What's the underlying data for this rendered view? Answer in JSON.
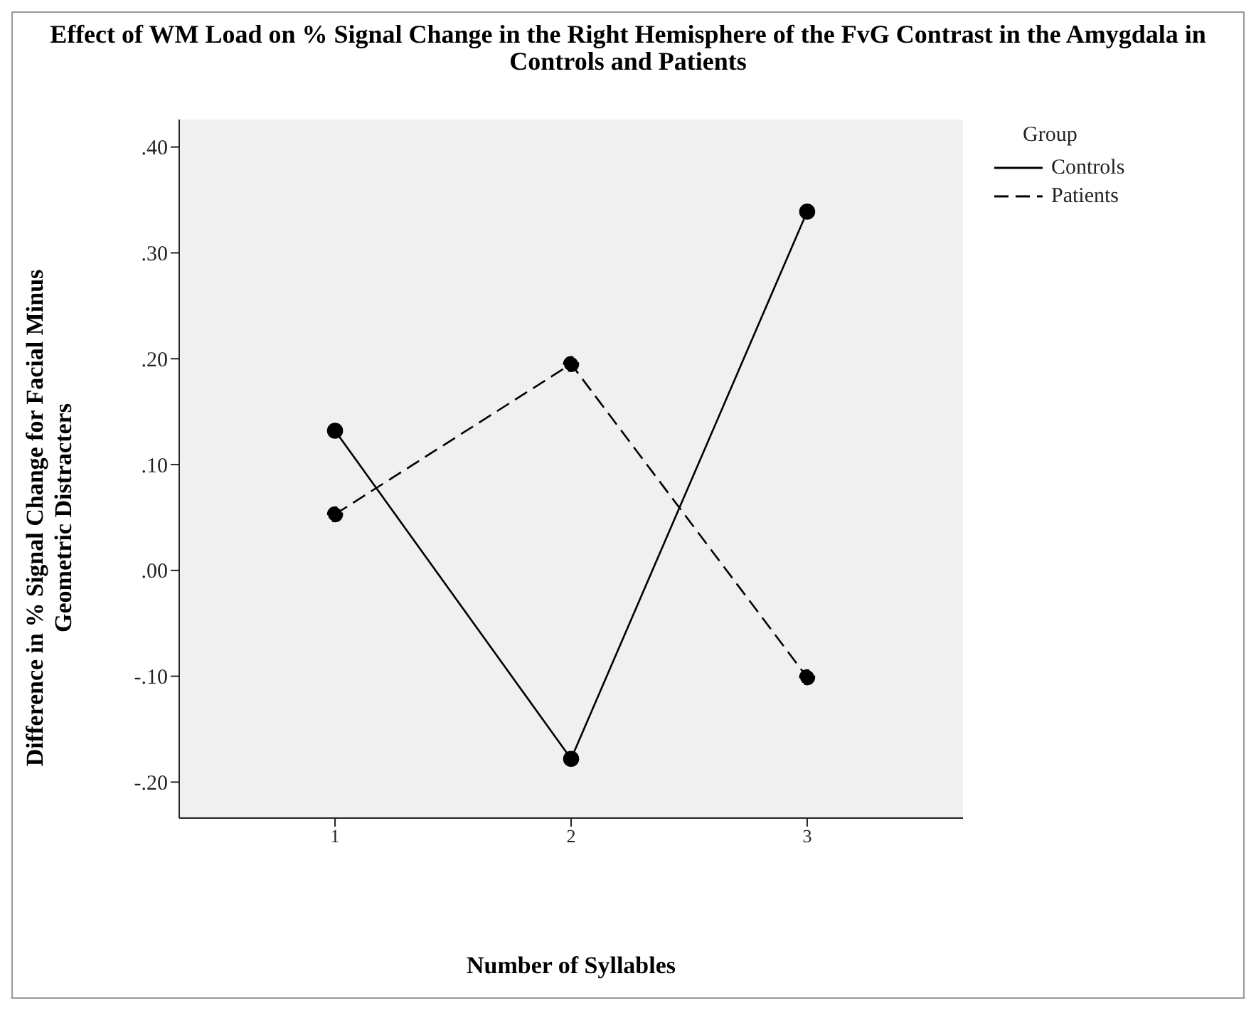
{
  "chart_data": {
    "type": "line",
    "title": "Effect of WM Load on % Signal Change in the Right Hemisphere of the FvG Contrast in the Amygdala in Controls and Patients",
    "xlabel": "Number of Syllables",
    "ylabel": "Difference in % Signal Change for Facial Minus Geometric Distracters",
    "legend_title": "Group",
    "x": [
      1,
      2,
      3
    ],
    "xlim": [
      0.34,
      3.66
    ],
    "xticks": [
      1,
      2,
      3
    ],
    "ylim": [
      -0.234,
      0.426
    ],
    "yticks": [
      {
        "value": -0.2,
        "label": "-.20"
      },
      {
        "value": -0.1,
        "label": "-.10"
      },
      {
        "value": 0,
        "label": ".00"
      },
      {
        "value": 0.1,
        "label": ".10"
      },
      {
        "value": 0.2,
        "label": ".20"
      },
      {
        "value": 0.3,
        "label": ".30"
      },
      {
        "value": 0.4,
        "label": ".40"
      }
    ],
    "series": [
      {
        "name": "Controls",
        "color": "#000000",
        "line_style": "solid",
        "values": [
          0.132,
          -0.178,
          0.339
        ]
      },
      {
        "name": "Patients",
        "color": "#000000",
        "line_style": "dashed",
        "values": [
          0.053,
          0.195,
          -0.101
        ]
      }
    ],
    "marker": "circle",
    "grid": false,
    "legend": "top right"
  }
}
